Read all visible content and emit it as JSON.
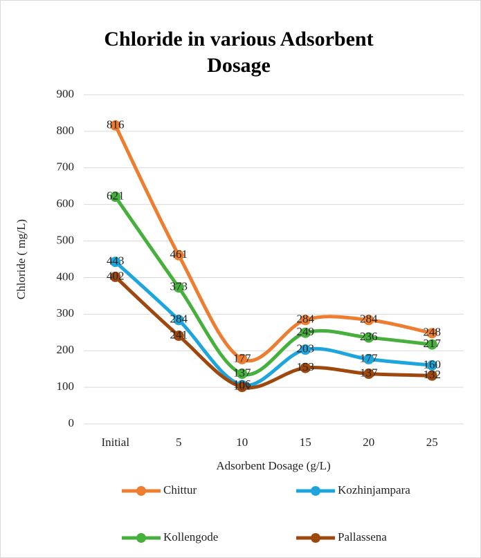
{
  "chart_data": {
    "type": "line",
    "title": "Chloride in various Adsorbent Dosage",
    "x_label": "Adsorbent Dosage (g/L)",
    "y_label": "Chloride ( mg/L)",
    "categories": [
      "Initial",
      "5",
      "10",
      "15",
      "20",
      "25"
    ],
    "series": [
      {
        "name": "Chittur",
        "color": "#ed7d31",
        "values": [
          816,
          461,
          177,
          284,
          284,
          248
        ]
      },
      {
        "name": "Kozhinjampara",
        "color": "#1ea6dc",
        "values": [
          443,
          284,
          106,
          203,
          177,
          160
        ]
      },
      {
        "name": "Kollengode",
        "color": "#46b03c",
        "values": [
          621,
          373,
          137,
          249,
          236,
          217
        ]
      },
      {
        "name": "Pallassena",
        "color": "#9e480e",
        "values": [
          402,
          241,
          101,
          153,
          137,
          132
        ]
      }
    ],
    "ylim": [
      0,
      900
    ],
    "yticks": [
      0,
      100,
      200,
      300,
      400,
      500,
      600,
      700,
      800,
      900
    ],
    "grid": true,
    "smooth": true,
    "legend": "bottom"
  }
}
